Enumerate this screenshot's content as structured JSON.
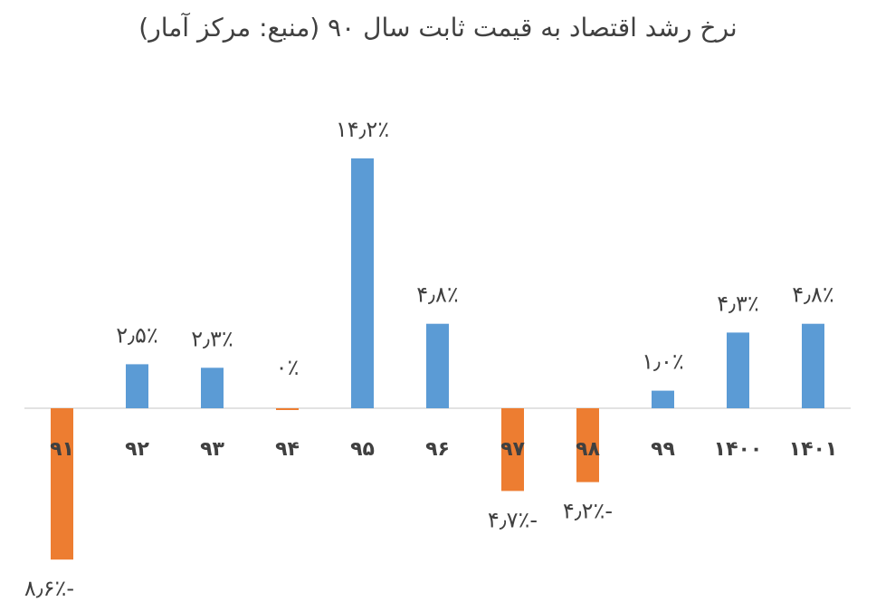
{
  "chart_data": {
    "type": "bar",
    "title": "نرخ رشد اقتصاد به قیمت ثابت سال ۹۰ (منبع: مرکز آمار)",
    "categories": [
      "۹۱",
      "۹۲",
      "۹۳",
      "۹۴",
      "۹۵",
      "۹۶",
      "۹۷",
      "۹۸",
      "۹۹",
      "۱۴۰۰",
      "۱۴۰۱"
    ],
    "values": [
      -8.6,
      2.5,
      2.3,
      -0.1,
      14.2,
      4.8,
      -4.7,
      -4.2,
      1.0,
      4.3,
      4.8
    ],
    "data_labels": [
      "۸٫۶٪-",
      "۲٫۵٪",
      "۲٫۳٪",
      "۰٪",
      "۱۴٫۲٪",
      "۴٫۸٪",
      "۴٫۷٪-",
      "۴٫۲٪-",
      "۱٫۰٪",
      "۴٫۳٪",
      "۴٫۸٪"
    ],
    "colors": {
      "positive": "#5b9bd5",
      "negative": "#ed7d31",
      "axis": "#d9d9d9"
    },
    "ylim": [
      -8.6,
      14.2
    ],
    "grid": false,
    "legend": false
  }
}
